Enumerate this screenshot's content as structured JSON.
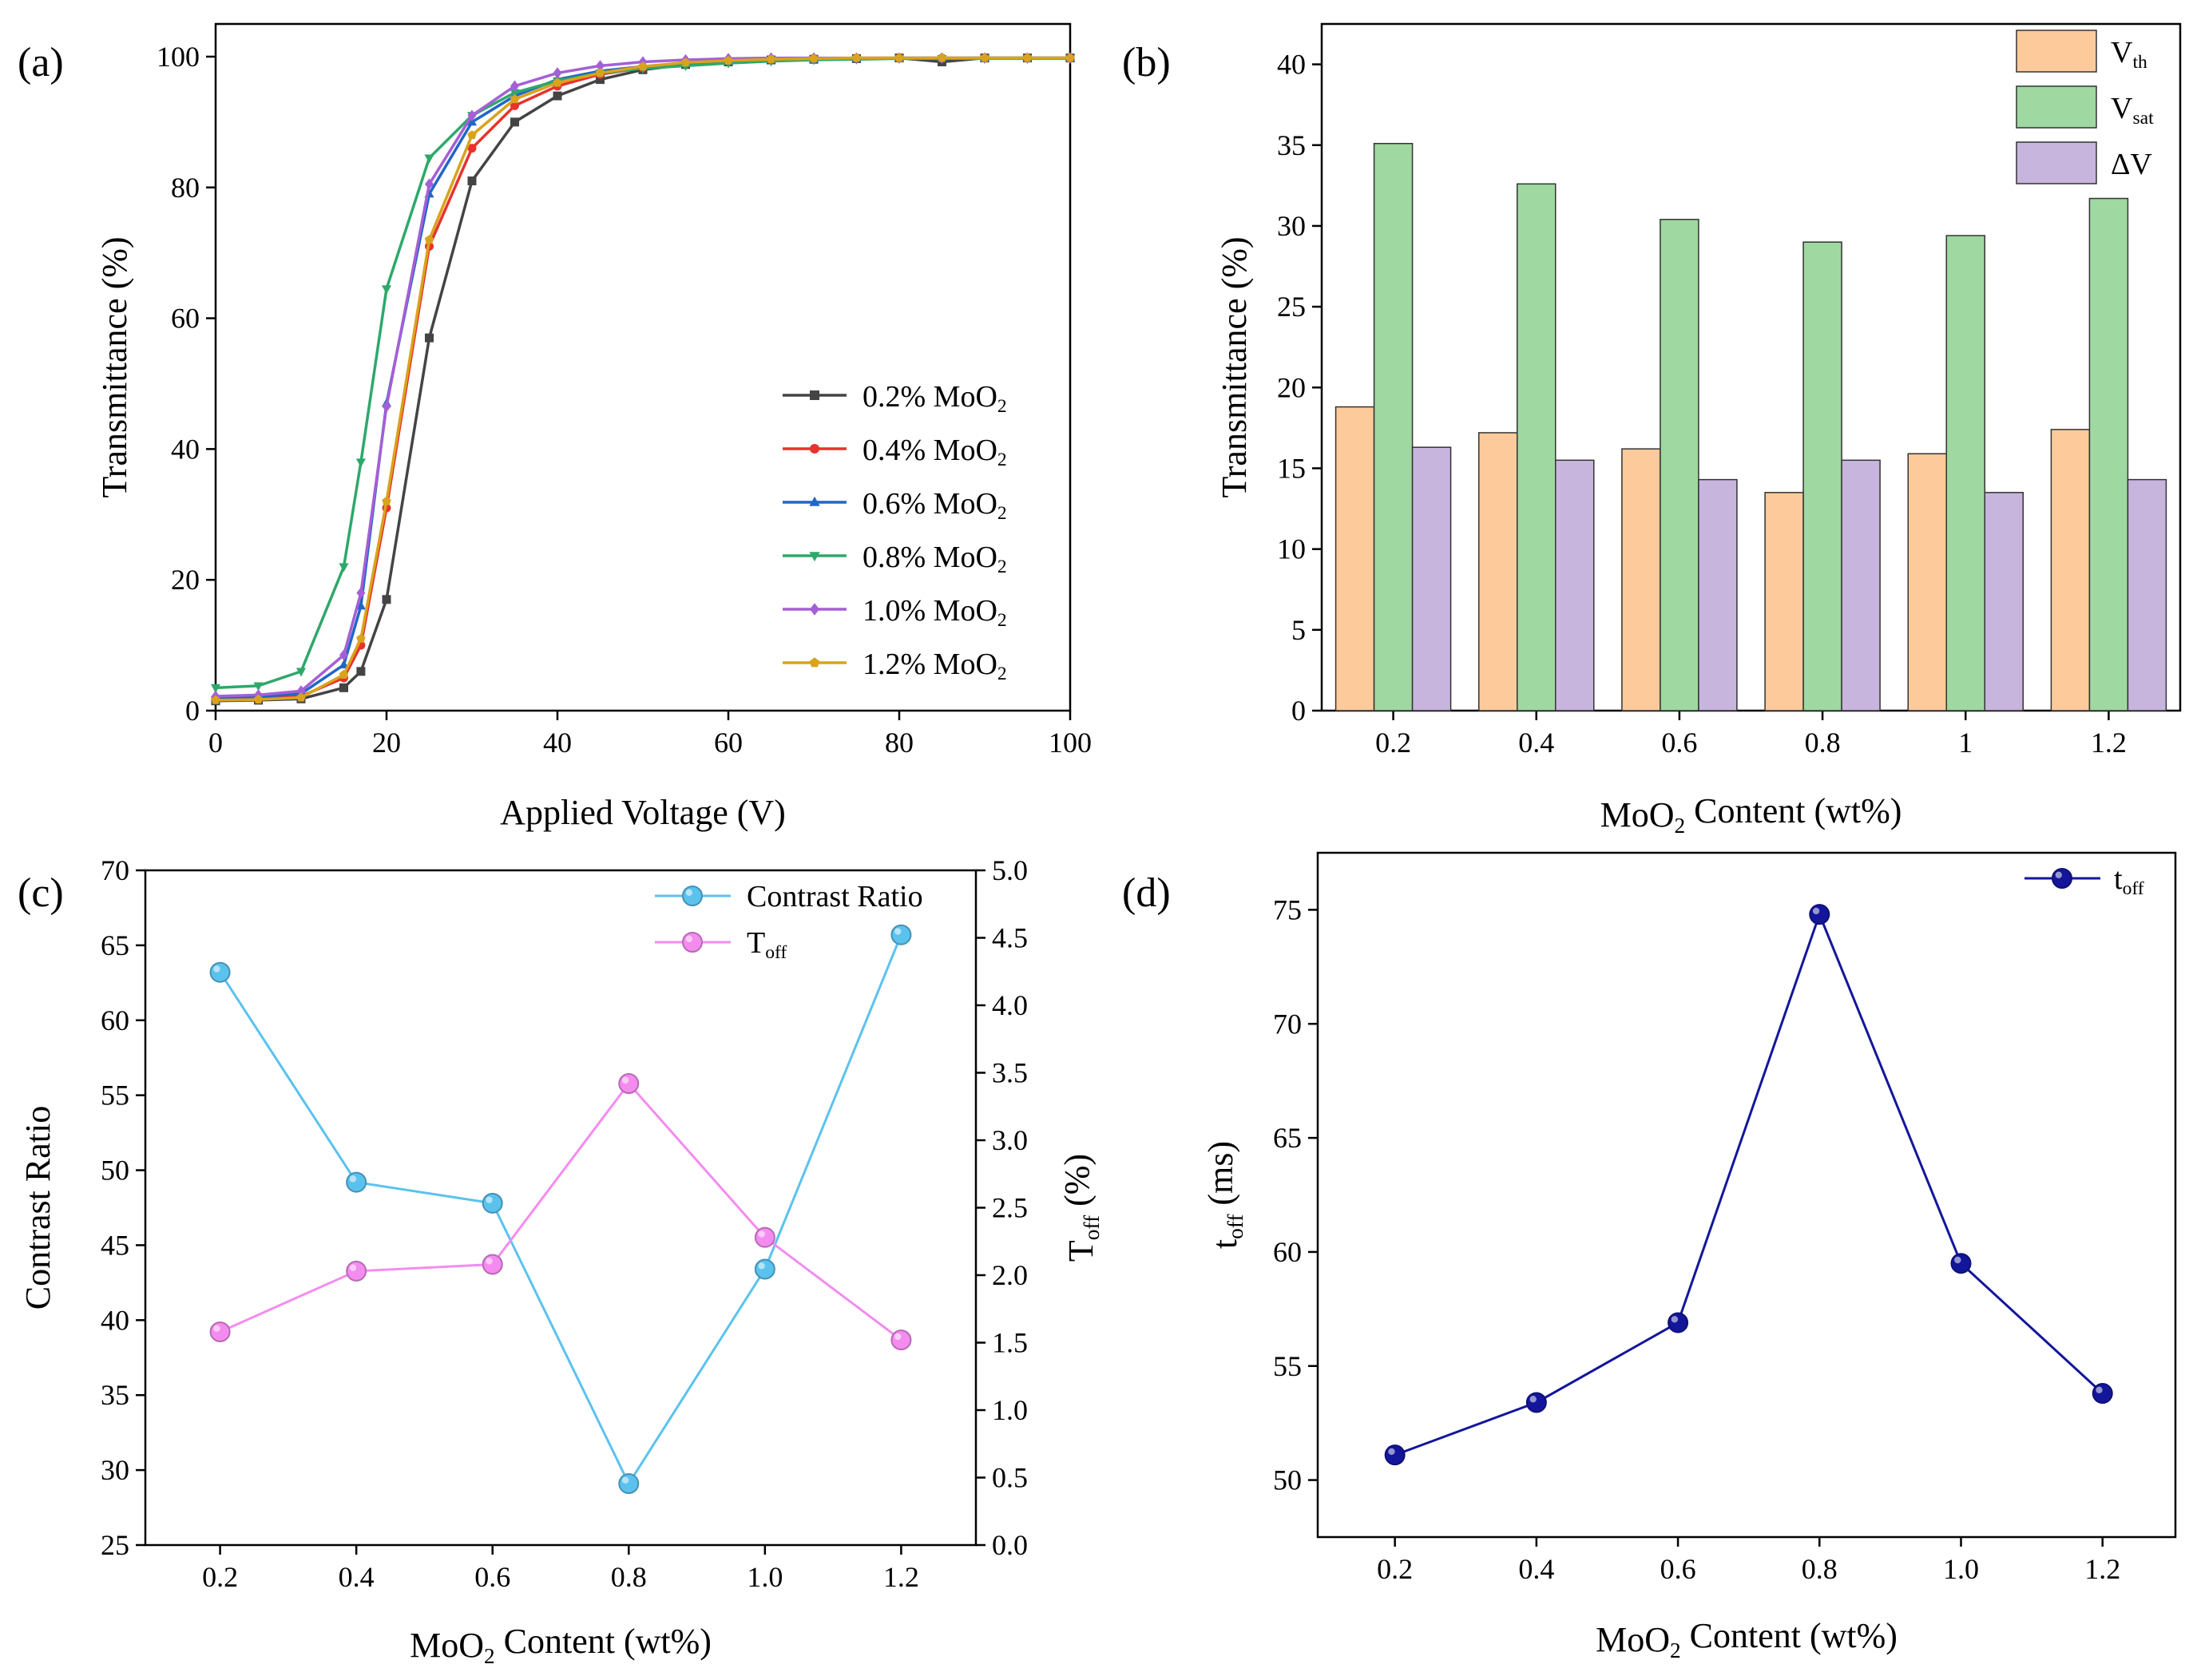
{
  "chart_data": [
    {
      "panel": "(a)",
      "type": "line",
      "xlabel": "Applied Voltage (V)",
      "ylabel": "Transmittance (%)",
      "xlim": [
        0,
        100
      ],
      "ylim": [
        0,
        105
      ],
      "xticks": [
        "0",
        "20",
        "40",
        "60",
        "80",
        "100"
      ],
      "yticks": [
        "0",
        "20",
        "40",
        "60",
        "80",
        "100"
      ],
      "legend_position": "lower-right",
      "x": [
        0,
        5,
        10,
        15,
        17,
        20,
        25,
        30,
        35,
        40,
        45,
        50,
        55,
        60,
        65,
        70,
        75,
        80,
        85,
        90,
        95,
        100
      ],
      "series": [
        {
          "name": "0.2% MoO",
          "sub": "2",
          "color": "#444444",
          "marker": "square",
          "values": [
            1.5,
            1.6,
            1.8,
            3.5,
            6,
            17,
            57,
            81,
            90,
            94,
            96.5,
            98,
            98.8,
            99.2,
            99.5,
            99.6,
            99.7,
            99.8,
            99.2,
            99.8,
            99.8,
            99.8
          ]
        },
        {
          "name": "0.4% MoO",
          "sub": "2",
          "color": "#e8322d",
          "marker": "circle",
          "values": [
            1.8,
            1.9,
            2.2,
            5,
            10,
            31,
            71,
            86,
            92.5,
            95.5,
            97.3,
            98.3,
            99,
            99.4,
            99.6,
            99.7,
            99.8,
            99.8,
            99.8,
            99.8,
            99.8,
            99.8
          ]
        },
        {
          "name": "0.6% MoO",
          "sub": "2",
          "color": "#2166c6",
          "marker": "triangle-up",
          "values": [
            2.0,
            2.1,
            2.6,
            7,
            16,
            47,
            79,
            90,
            94,
            96.5,
            97.8,
            98.5,
            99,
            99.3,
            99.5,
            99.6,
            99.7,
            99.8,
            99.8,
            99.8,
            99.8,
            99.8
          ]
        },
        {
          "name": "0.8% MoO",
          "sub": "2",
          "color": "#2ea86b",
          "marker": "triangle-down",
          "values": [
            3.5,
            3.8,
            6,
            22,
            38,
            64.5,
            84.5,
            91,
            94.5,
            96.3,
            97.5,
            98.2,
            98.6,
            99,
            99.3,
            99.5,
            99.6,
            99.7,
            99.7,
            99.7,
            99.7,
            99.7
          ]
        },
        {
          "name": "1.0% MoO",
          "sub": "2",
          "color": "#a55fd6",
          "marker": "diamond",
          "values": [
            2.2,
            2.4,
            3,
            8.5,
            18,
            46.5,
            80.5,
            91,
            95.5,
            97.5,
            98.6,
            99.2,
            99.5,
            99.7,
            99.8,
            99.8,
            99.8,
            99.8,
            99.8,
            99.8,
            99.8,
            99.8
          ]
        },
        {
          "name": "1.2% MoO",
          "sub": "2",
          "color": "#d9a31c",
          "marker": "pentagon",
          "values": [
            1.6,
            1.7,
            2.0,
            5.5,
            11,
            32,
            72,
            88,
            93.5,
            96,
            97.5,
            98.5,
            99.1,
            99.4,
            99.6,
            99.7,
            99.8,
            99.8,
            99.8,
            99.8,
            99.8,
            99.8
          ]
        }
      ]
    },
    {
      "panel": "(b)",
      "type": "bar",
      "xlabel_pre": "MoO",
      "xlabel_sub": "2",
      "xlabel_post": " Content (wt%)",
      "ylabel": "Transmittance (%)",
      "ylim": [
        0,
        42.5
      ],
      "yticks": [
        "0",
        "5",
        "10",
        "15",
        "20",
        "25",
        "30",
        "35",
        "40"
      ],
      "categories": [
        "0.2",
        "0.4",
        "0.6",
        "0.8",
        "1",
        "1.2"
      ],
      "legend_position": "top-right",
      "series": [
        {
          "name": "V",
          "sub": "th",
          "color": "#fdcb9b",
          "values": [
            18.8,
            17.2,
            16.2,
            13.5,
            15.9,
            17.4
          ]
        },
        {
          "name": "V",
          "sub": "sat",
          "color": "#9fd8a0",
          "values": [
            35.1,
            32.6,
            30.4,
            29.0,
            29.4,
            31.7
          ]
        },
        {
          "name": "ΔV",
          "sub": "",
          "color": "#c7b5dd",
          "values": [
            16.3,
            15.5,
            14.3,
            15.5,
            13.5,
            14.3
          ]
        }
      ]
    },
    {
      "panel": "(c)",
      "type": "line",
      "xlabel_pre": "MoO",
      "xlabel_sub": "2",
      "xlabel_post": " Content (wt%)",
      "ylabel": "Contrast Ratio",
      "ylabel2_pre": "T",
      "ylabel2_sub": "off",
      "ylabel2_post": " (%)",
      "ylim": [
        25,
        70
      ],
      "ylim2": [
        0,
        5
      ],
      "yticks": [
        "25",
        "30",
        "35",
        "40",
        "45",
        "50",
        "55",
        "60",
        "65",
        "70"
      ],
      "yticks2": [
        "0.0",
        "0.5",
        "1.0",
        "1.5",
        "2.0",
        "2.5",
        "3.0",
        "3.5",
        "4.0",
        "4.5",
        "5.0"
      ],
      "categories": [
        "0.2",
        "0.4",
        "0.6",
        "0.8",
        "1.0",
        "1.2"
      ],
      "legend_position": "top-right",
      "series": [
        {
          "name": "Contrast Ratio",
          "sub": "",
          "color": "#5bc2ee",
          "axis": "left",
          "values": [
            63.2,
            49.2,
            47.8,
            29.1,
            43.4,
            65.7
          ]
        },
        {
          "name": "T",
          "sub": "off",
          "color": "#f48cf0",
          "axis": "right",
          "values": [
            1.58,
            2.03,
            2.08,
            3.42,
            2.28,
            1.52
          ]
        }
      ]
    },
    {
      "panel": "(d)",
      "type": "line",
      "xlabel_pre": "MoO",
      "xlabel_sub": "2",
      "xlabel_post": " Content (wt%)",
      "ylabel_pre": "t",
      "ylabel_sub": "off",
      "ylabel_post": " (ms)",
      "ylim": [
        47.5,
        77.5
      ],
      "yticks": [
        "50",
        "55",
        "60",
        "65",
        "70",
        "75"
      ],
      "categories": [
        "0.2",
        "0.4",
        "0.6",
        "0.8",
        "1.0",
        "1.2"
      ],
      "legend_position": "top-right",
      "series": [
        {
          "name": "t",
          "sub": "off",
          "color": "#13169a",
          "values": [
            51.1,
            53.4,
            56.9,
            74.8,
            59.5,
            53.8
          ]
        }
      ]
    }
  ]
}
